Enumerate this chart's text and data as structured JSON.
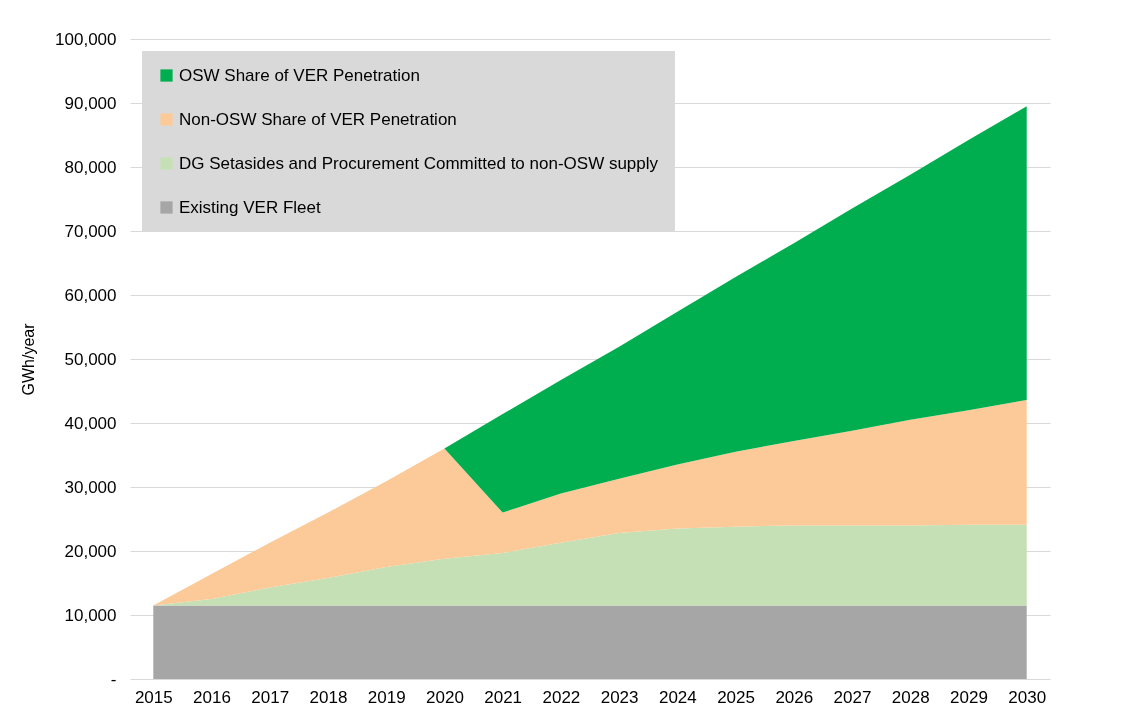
{
  "chart_data": {
    "type": "area",
    "stacked": true,
    "ylabel": "GWh/year",
    "categories": [
      "2015",
      "2016",
      "2017",
      "2018",
      "2019",
      "2020",
      "2021",
      "2022",
      "2023",
      "2024",
      "2025",
      "2026",
      "2027",
      "2028",
      "2029",
      "2030"
    ],
    "series": [
      {
        "name": "Existing VER Fleet",
        "color": "#a6a6a6",
        "values": [
          11500,
          11500,
          11500,
          11500,
          11500,
          11500,
          11500,
          11500,
          11500,
          11500,
          11500,
          11500,
          11500,
          11500,
          11500,
          11500
        ]
      },
      {
        "name": "DG Setasides and Procurement Committed to non-OSW supply",
        "color": "#c5e0b4",
        "values": [
          0,
          1000,
          2800,
          4300,
          6000,
          7300,
          8200,
          9800,
          11300,
          12000,
          12300,
          12500,
          12500,
          12500,
          12600,
          12600
        ]
      },
      {
        "name": "Non-OSW Share of VER Penetration",
        "color": "#fcca98",
        "values": [
          0,
          3900,
          7000,
          10200,
          13400,
          17200,
          6300,
          7700,
          8500,
          10000,
          11700,
          13200,
          14800,
          16500,
          17900,
          19500
        ]
      },
      {
        "name": "OSW Share of VER Penetration",
        "color": "#00ae4f",
        "values": [
          0,
          0,
          0,
          0,
          0,
          0,
          15400,
          17700,
          20600,
          23900,
          27300,
          30900,
          34700,
          38300,
          42200,
          45900
        ]
      }
    ],
    "ylim": [
      0,
      100000
    ],
    "yticks": [
      {
        "value": 0,
        "label": "-"
      },
      {
        "value": 10000,
        "label": "10,000"
      },
      {
        "value": 20000,
        "label": "20,000"
      },
      {
        "value": 30000,
        "label": "30,000"
      },
      {
        "value": 40000,
        "label": "40,000"
      },
      {
        "value": 50000,
        "label": "50,000"
      },
      {
        "value": 60000,
        "label": "60,000"
      },
      {
        "value": 70000,
        "label": "70,000"
      },
      {
        "value": 80000,
        "label": "80,000"
      },
      {
        "value": 90000,
        "label": "90,000"
      },
      {
        "value": 100000,
        "label": "100,000"
      }
    ],
    "grid": "y",
    "legend": "top left"
  }
}
